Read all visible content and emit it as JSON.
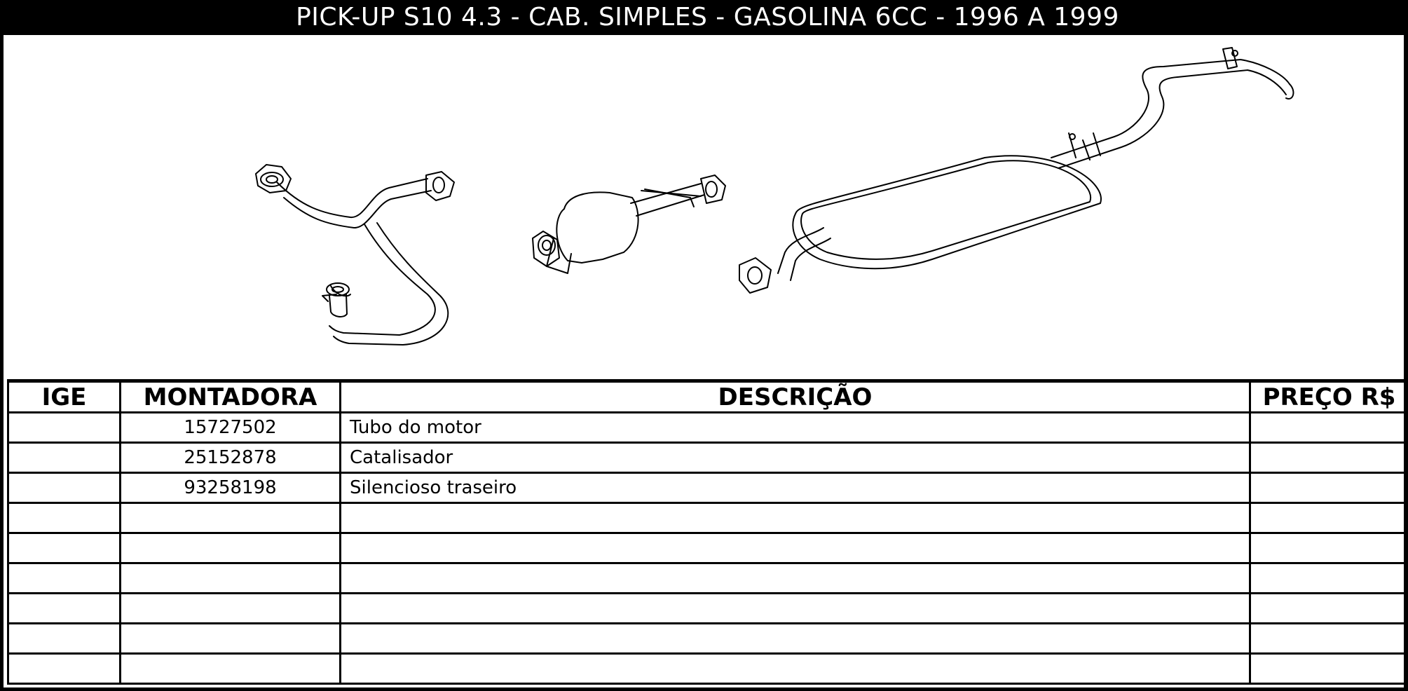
{
  "title": "PICK-UP S10 4.3 - CAB. SIMPLES - GASOLINA 6CC - 1996 A 1999",
  "illustration": {
    "parts": [
      "engine-pipe",
      "catalytic-converter",
      "rear-muffler"
    ]
  },
  "table": {
    "columns": [
      "IGE",
      "MONTADORA",
      "DESCRIÇÃO",
      "PREÇO R$"
    ],
    "rows": [
      {
        "ige": "",
        "montadora": "15727502",
        "descricao": "Tubo do motor",
        "preco": ""
      },
      {
        "ige": "",
        "montadora": "25152878",
        "descricao": "Catalisador",
        "preco": ""
      },
      {
        "ige": "",
        "montadora": "93258198",
        "descricao": "Silencioso traseiro",
        "preco": ""
      },
      {
        "ige": "",
        "montadora": "",
        "descricao": "",
        "preco": ""
      },
      {
        "ige": "",
        "montadora": "",
        "descricao": "",
        "preco": ""
      },
      {
        "ige": "",
        "montadora": "",
        "descricao": "",
        "preco": ""
      },
      {
        "ige": "",
        "montadora": "",
        "descricao": "",
        "preco": ""
      },
      {
        "ige": "",
        "montadora": "",
        "descricao": "",
        "preco": ""
      },
      {
        "ige": "",
        "montadora": "",
        "descricao": "",
        "preco": ""
      }
    ]
  }
}
